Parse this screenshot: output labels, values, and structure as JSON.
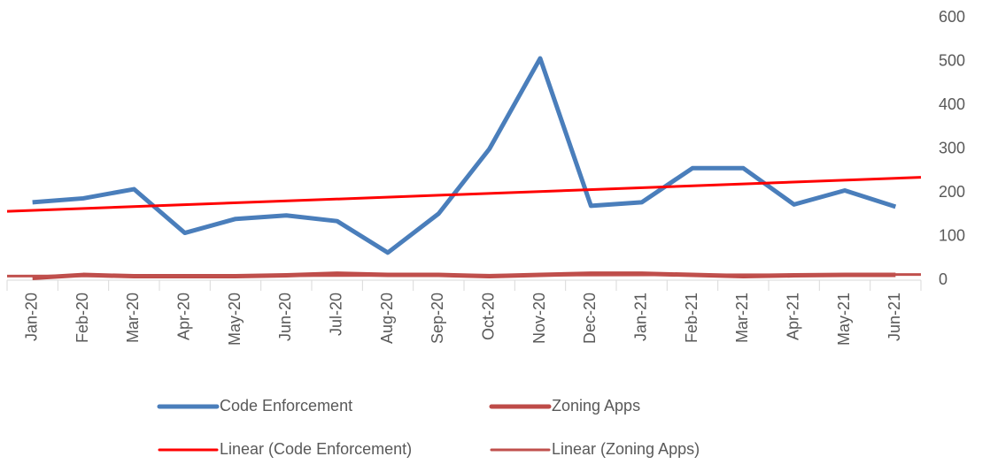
{
  "chart_data": {
    "type": "line",
    "categories": [
      "Jan-20",
      "Feb-20",
      "Mar-20",
      "Apr-20",
      "May-20",
      "Jun-20",
      "Jul-20",
      "Aug-20",
      "Sep-20",
      "Oct-20",
      "Nov-20",
      "Dec-20",
      "Jan-21",
      "Feb-21",
      "Mar-21",
      "Apr-21",
      "May-21",
      "Jun-21"
    ],
    "series": [
      {
        "name": "Code Enforcement",
        "color": "#4a7ebb",
        "values": [
          178,
          187,
          208,
          108,
          140,
          148,
          135,
          63,
          152,
          300,
          507,
          170,
          178,
          256,
          256,
          173,
          205,
          168
        ]
      },
      {
        "name": "Zoning Apps",
        "color": "#be4b48",
        "values": [
          5,
          12,
          9,
          9,
          9,
          11,
          15,
          12,
          12,
          9,
          12,
          15,
          15,
          12,
          9,
          11,
          12,
          12
        ]
      }
    ],
    "trendlines": [
      {
        "name": "Linear (Code Enforcement)",
        "color": "#ff0000",
        "series": 0
      },
      {
        "name": "Linear (Zoning Apps)",
        "color": "#c0504d",
        "series": 1
      }
    ],
    "ylim": [
      0,
      600
    ],
    "yticks": [
      0,
      100,
      200,
      300,
      400,
      500,
      600
    ],
    "y_axis_side": "right",
    "grid": false
  }
}
